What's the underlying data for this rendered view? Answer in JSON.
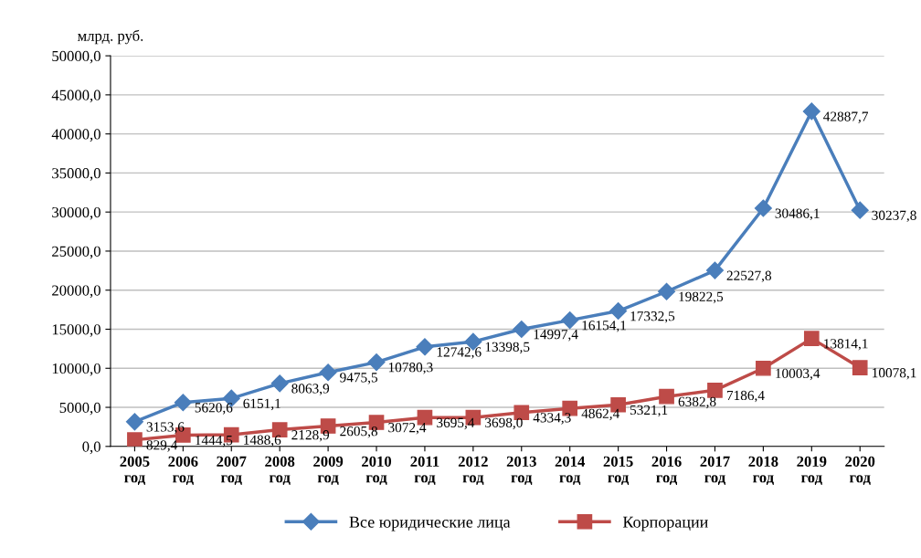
{
  "chart_data": {
    "type": "line",
    "ylabel": "млрд. руб.",
    "categories": [
      "2005\nгод",
      "2006\nгод",
      "2007\nгод",
      "2008\nгод",
      "2009\nгод",
      "2010\nгод",
      "2011\nгод",
      "2012\nгод",
      "2013\nгод",
      "2014\nгод",
      "2015\nгод",
      "2016\nгод",
      "2017\nгод",
      "2018\nгод",
      "2019\nгод",
      "2020\nгод"
    ],
    "series": [
      {
        "name": "Все юридические лица",
        "color": "#4a7ebb",
        "marker": "diamond",
        "values": [
          3153.6,
          5620.6,
          6151.1,
          8063.9,
          9475.5,
          10780.3,
          12742.6,
          13398.5,
          14997.4,
          16154.1,
          17332.5,
          19822.5,
          22527.8,
          30486.1,
          42887.7,
          30237.8
        ],
        "value_labels": [
          "3153,6",
          "5620,6",
          "6151,1",
          "8063,9",
          "9475,5",
          "10780,3",
          "12742,6",
          "13398,5",
          "14997,4",
          "16154,1",
          "17332,5",
          "19822,5",
          "22527,8",
          "30486,1",
          "42887,7",
          "30237,8"
        ]
      },
      {
        "name": "Корпорации",
        "color": "#be4b48",
        "marker": "square",
        "values": [
          829.4,
          1444.5,
          1488.6,
          2128.9,
          2605.8,
          3072.4,
          3695.4,
          3698.0,
          4334.3,
          4862.4,
          5321.1,
          6382.8,
          7186.4,
          10003.4,
          13814.1,
          10078.1
        ],
        "value_labels": [
          "829,4",
          "1444,5",
          "1488,6",
          "2128,9",
          "2605,8",
          "3072,4",
          "3695,4",
          "3698,0",
          "4334,3",
          "4862,4",
          "5321,1",
          "6382,8",
          "7186,4",
          "10003,4",
          "13814,1",
          "10078,1"
        ]
      }
    ],
    "ylim": [
      0,
      50000
    ],
    "yticks": [
      {
        "value": 0,
        "label": "0,0"
      },
      {
        "value": 5000,
        "label": "5000,0"
      },
      {
        "value": 10000,
        "label": "10000,0"
      },
      {
        "value": 15000,
        "label": "15000,0"
      },
      {
        "value": 20000,
        "label": "20000,0"
      },
      {
        "value": 25000,
        "label": "25000,0"
      },
      {
        "value": 30000,
        "label": "30000,0"
      },
      {
        "value": 35000,
        "label": "35000,0"
      },
      {
        "value": 40000,
        "label": "40000,0"
      },
      {
        "value": 45000,
        "label": "45000,0"
      },
      {
        "value": 50000,
        "label": "50000,0"
      }
    ],
    "grid": "y",
    "legend": "bottom",
    "line_style": "solid"
  }
}
